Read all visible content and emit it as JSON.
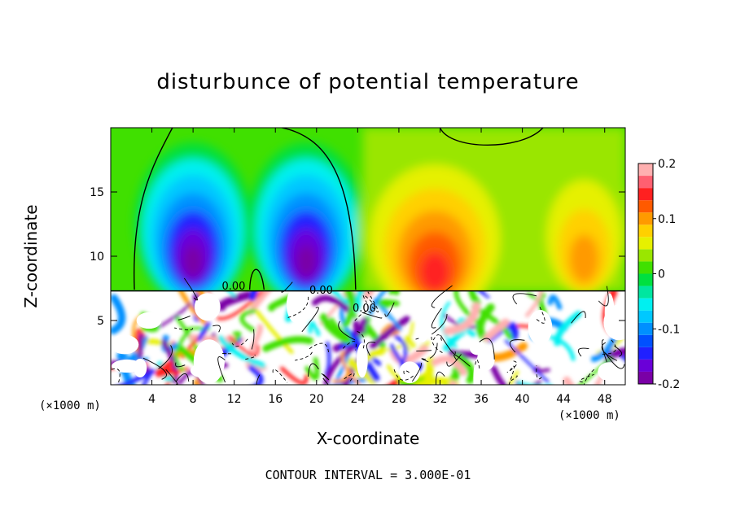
{
  "chart_data": {
    "type": "heatmap",
    "title": "disturbunce of potential temperature",
    "xlabel": "X-coordinate",
    "ylabel": "Z-coordinate",
    "x_unit_label": "(×1000 m)",
    "x_ticks": [
      4,
      8,
      12,
      16,
      20,
      24,
      28,
      32,
      36,
      40,
      44,
      48
    ],
    "y_ticks": [
      5,
      10,
      15
    ],
    "xlim": [
      0,
      50
    ],
    "ylim": [
      0,
      20
    ],
    "colorbar": {
      "min": -0.2,
      "max": 0.2,
      "tick_labels": [
        "0.2",
        "0.1",
        "0",
        "-0.1",
        "-0.2"
      ],
      "tick_values": [
        0.2,
        0.1,
        0,
        -0.1,
        -0.2
      ],
      "colors": [
        "#7a00a6",
        "#6a00d8",
        "#2020ff",
        "#0050ff",
        "#0090ff",
        "#00c8ff",
        "#00f0f0",
        "#00e6a0",
        "#00e040",
        "#40e000",
        "#9ae600",
        "#e6f000",
        "#ffd000",
        "#ff9a00",
        "#ff5a00",
        "#ff2020",
        "#ff6070",
        "#ffb0b0"
      ]
    },
    "contour_labels": [
      "0.00",
      "0.00",
      "0.00"
    ],
    "contour_interval_text": "CONTOUR INTERVAL = 3.000E-01",
    "features": [
      {
        "name": "cold anomaly",
        "x_center": 8,
        "z_center": 11,
        "value": -0.18
      },
      {
        "name": "cold anomaly",
        "x_center": 19,
        "z_center": 11,
        "value": -0.18
      },
      {
        "name": "warm anomaly",
        "x_center": 32,
        "z_center": 10,
        "value": 0.12
      },
      {
        "name": "warm anomaly",
        "x_center": 46,
        "z_center": 10,
        "value": 0.09
      }
    ]
  }
}
